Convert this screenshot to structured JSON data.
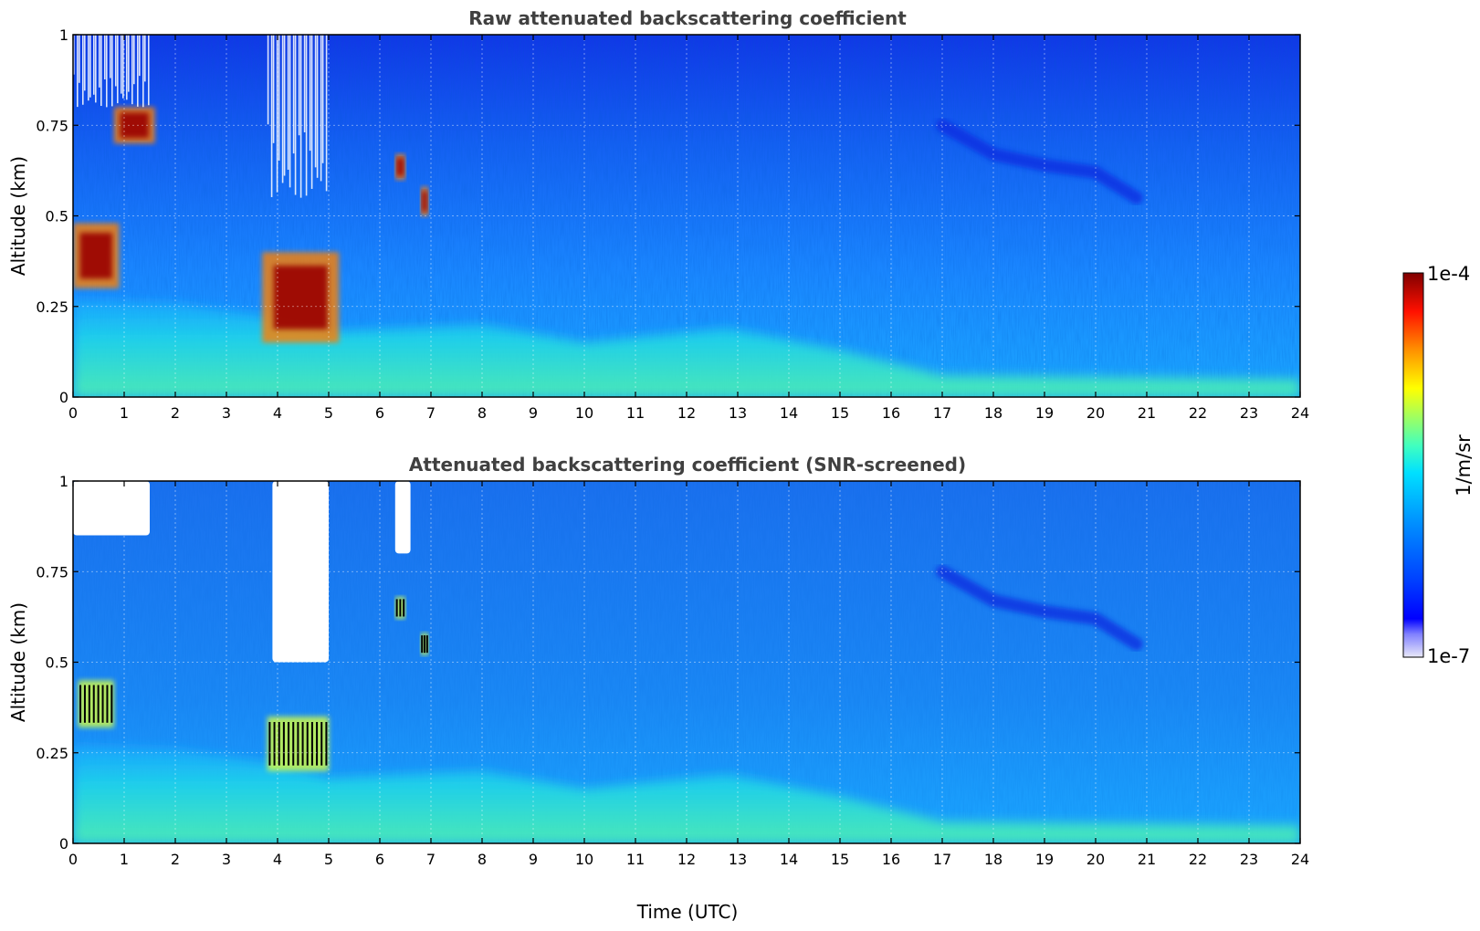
{
  "chart_data": [
    {
      "type": "heatmap",
      "title": "Raw attenuated backscattering coefficient",
      "xlabel": "",
      "ylabel": "Altitude (km)",
      "xlim": [
        0,
        24
      ],
      "ylim": [
        0,
        1
      ],
      "x_ticks": [
        "0",
        "1",
        "2",
        "3",
        "4",
        "5",
        "6",
        "7",
        "8",
        "9",
        "10",
        "11",
        "12",
        "13",
        "14",
        "15",
        "16",
        "17",
        "18",
        "19",
        "20",
        "21",
        "22",
        "23",
        "24"
      ],
      "y_ticks": [
        "0",
        "0.25",
        "0.5",
        "0.75",
        "1"
      ],
      "grid": true,
      "features": {
        "surface_layer": [
          {
            "t": 0,
            "top_km": 0.27
          },
          {
            "t": 2,
            "top_km": 0.26
          },
          {
            "t": 4,
            "top_km": 0.22
          },
          {
            "t": 5,
            "top_km": 0.18
          },
          {
            "t": 8,
            "top_km": 0.2
          },
          {
            "t": 10,
            "top_km": 0.15
          },
          {
            "t": 12.8,
            "top_km": 0.19
          },
          {
            "t": 15,
            "top_km": 0.13
          },
          {
            "t": 17,
            "top_km": 0.06
          },
          {
            "t": 24,
            "top_km": 0.05
          }
        ],
        "strong_returns": [
          {
            "t0": 0.0,
            "t1": 0.9,
            "z0_km": 0.3,
            "z1_km": 0.48
          },
          {
            "t0": 0.8,
            "t1": 1.6,
            "z0_km": 0.7,
            "z1_km": 0.8
          },
          {
            "t0": 3.7,
            "t1": 5.2,
            "z0_km": 0.15,
            "z1_km": 0.4
          },
          {
            "t0": 6.3,
            "t1": 6.5,
            "z0_km": 0.6,
            "z1_km": 0.67
          },
          {
            "t0": 6.8,
            "t1": 6.95,
            "z0_km": 0.5,
            "z1_km": 0.58
          }
        ],
        "no_data_regions": [
          {
            "t0": 0.0,
            "t1": 1.5,
            "z0_km": 0.8,
            "z1_km": 1.0
          },
          {
            "t0": 3.8,
            "t1": 5.0,
            "z0_km": 0.55,
            "z1_km": 1.0
          }
        ],
        "residual_layer": [
          {
            "t": 17,
            "z_km": 0.75
          },
          {
            "t": 18,
            "z_km": 0.67
          },
          {
            "t": 19,
            "z_km": 0.64
          },
          {
            "t": 20,
            "z_km": 0.62
          },
          {
            "t": 20.8,
            "z_km": 0.55
          }
        ]
      }
    },
    {
      "type": "heatmap",
      "title": "Attenuated backscattering coefficient (SNR-screened)",
      "xlabel": "Time (UTC)",
      "ylabel": "Altitude (km)",
      "xlim": [
        0,
        24
      ],
      "ylim": [
        0,
        1
      ],
      "x_ticks": [
        "0",
        "1",
        "2",
        "3",
        "4",
        "5",
        "6",
        "7",
        "8",
        "9",
        "10",
        "11",
        "12",
        "13",
        "14",
        "15",
        "16",
        "17",
        "18",
        "19",
        "20",
        "21",
        "22",
        "23",
        "24"
      ],
      "y_ticks": [
        "0",
        "0.25",
        "0.5",
        "0.75",
        "1"
      ],
      "grid": true,
      "features": {
        "screened_regions": [
          {
            "t0": 0.0,
            "t1": 1.5,
            "z0_km": 0.85,
            "z1_km": 1.0
          },
          {
            "t0": 3.9,
            "t1": 5.0,
            "z0_km": 0.5,
            "z1_km": 1.0
          },
          {
            "t0": 6.3,
            "t1": 6.6,
            "z0_km": 0.8,
            "z1_km": 1.0
          }
        ],
        "saturated_returns": [
          {
            "t0": 0.1,
            "t1": 0.8,
            "z0_km": 0.32,
            "z1_km": 0.45
          },
          {
            "t0": 3.8,
            "t1": 5.0,
            "z0_km": 0.2,
            "z1_km": 0.35
          },
          {
            "t0": 6.3,
            "t1": 6.5,
            "z0_km": 0.62,
            "z1_km": 0.68
          },
          {
            "t0": 6.8,
            "t1": 6.95,
            "z0_km": 0.52,
            "z1_km": 0.58
          }
        ]
      }
    }
  ],
  "colorbar": {
    "label": "1/m/sr",
    "max_label": "1e-4",
    "min_label": "1e-7",
    "scale": "log",
    "range": [
      1e-07,
      0.0001
    ],
    "colormap": "jet"
  }
}
